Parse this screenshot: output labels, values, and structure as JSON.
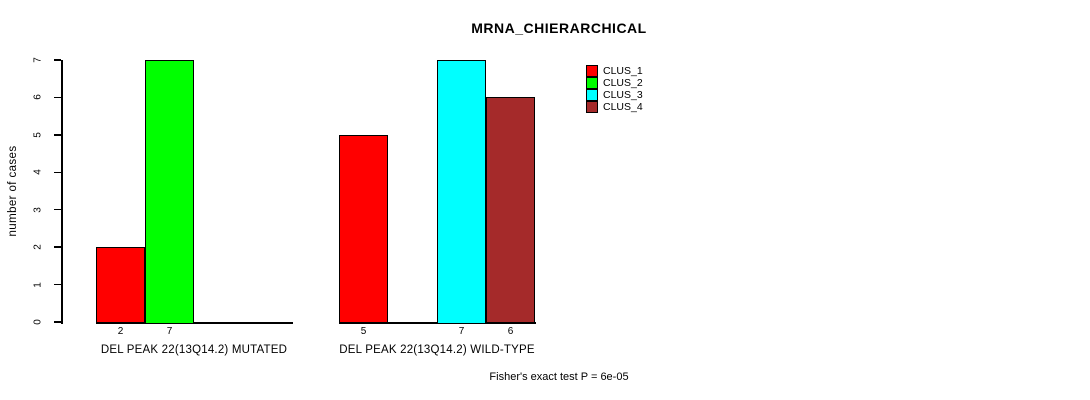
{
  "chart_data": {
    "type": "bar",
    "title": "MRNA_CHIERARCHICAL",
    "ylabel": "number of cases",
    "xlabel": "",
    "ylim": [
      0,
      7
    ],
    "yticks": [
      0,
      1,
      2,
      3,
      4,
      5,
      6,
      7
    ],
    "grid": false,
    "legend_position": "top-right",
    "series": [
      {
        "name": "CLUS_1",
        "color": "#FF0000"
      },
      {
        "name": "CLUS_2",
        "color": "#00FF00"
      },
      {
        "name": "CLUS_3",
        "color": "#00FFFF"
      },
      {
        "name": "CLUS_4",
        "color": "#A52A2A"
      }
    ],
    "groups": [
      {
        "label": "DEL PEAK 22(13Q14.2) MUTATED",
        "values": [
          2,
          7,
          0,
          0
        ]
      },
      {
        "label": "DEL PEAK 22(13Q14.2) WILD-TYPE",
        "values": [
          5,
          0,
          7,
          6
        ]
      }
    ],
    "annotation": "Fisher's exact test P = 6e-05"
  }
}
